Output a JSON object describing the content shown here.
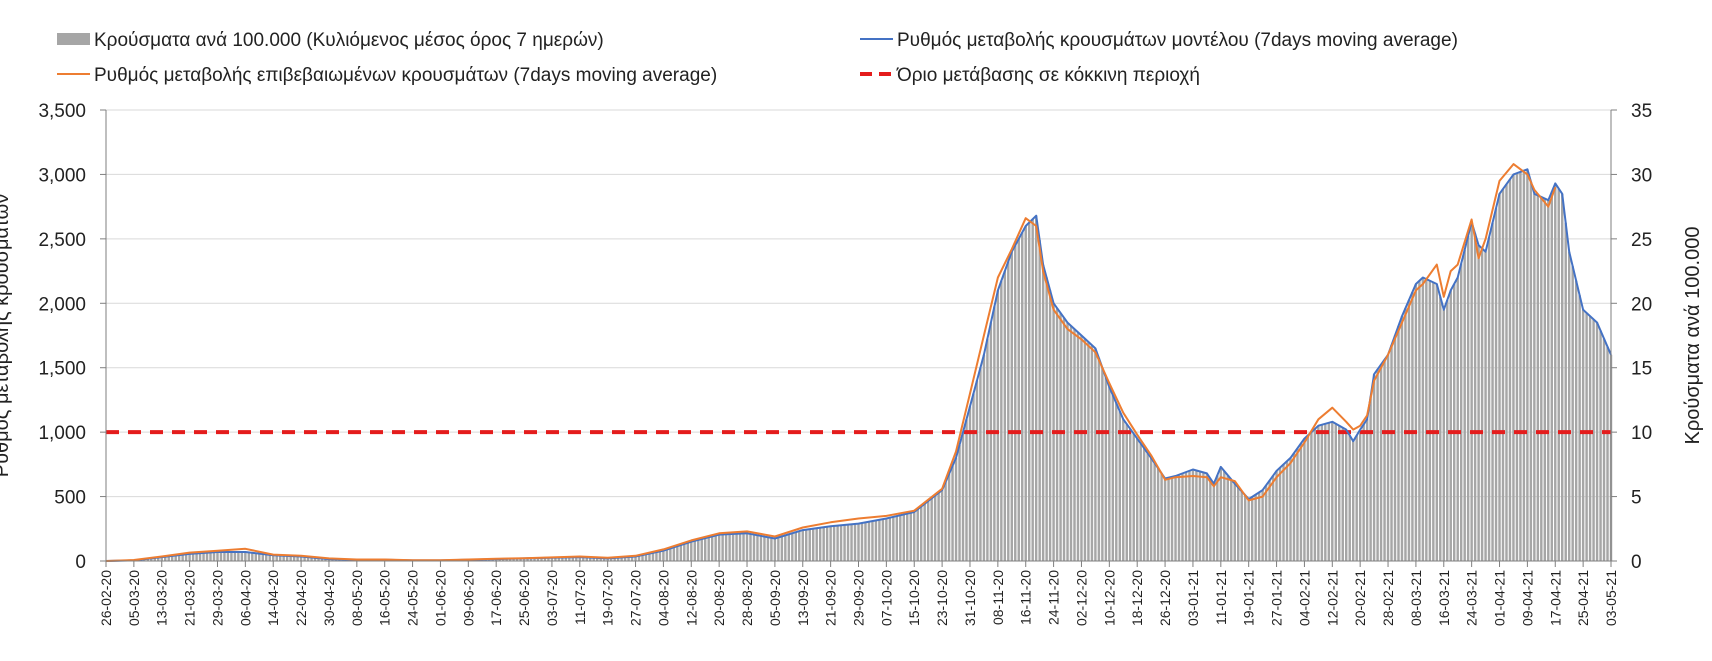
{
  "chart_data": {
    "type": "bar+line",
    "title": "",
    "ylabel_left": "Ρυθμός μεταβολής κρουσμάτων",
    "ylabel_right": "Κρούσματα ανά 100.000",
    "ylim_left": [
      0,
      3500
    ],
    "ylim_right": [
      0,
      35
    ],
    "yticks_left": [
      "0",
      "500",
      "1,000",
      "1,500",
      "2,000",
      "2,500",
      "3,000",
      "3,500"
    ],
    "yticks_right": [
      "0",
      "5",
      "10",
      "15",
      "20",
      "25",
      "30",
      "35"
    ],
    "grid": true,
    "legend_position": "top",
    "x_start": "26-02-20",
    "x_end": "03-05-21",
    "x_tick_labels": [
      "26-02-20",
      "05-03-20",
      "13-03-20",
      "21-03-20",
      "29-03-20",
      "06-04-20",
      "14-04-20",
      "22-04-20",
      "30-04-20",
      "08-05-20",
      "16-05-20",
      "24-05-20",
      "01-06-20",
      "09-06-20",
      "17-06-20",
      "25-06-20",
      "03-07-20",
      "11-07-20",
      "19-07-20",
      "27-07-20",
      "04-08-20",
      "12-08-20",
      "20-08-20",
      "28-08-20",
      "05-09-20",
      "13-09-20",
      "21-09-20",
      "29-09-20",
      "07-10-20",
      "15-10-20",
      "23-10-20",
      "31-10-20",
      "08-11-20",
      "16-11-20",
      "24-11-20",
      "02-12-20",
      "10-12-20",
      "18-12-20",
      "26-12-20",
      "03-01-21",
      "11-01-21",
      "19-01-21",
      "27-01-21",
      "04-02-21",
      "12-02-21",
      "20-02-21",
      "28-02-21",
      "08-03-21",
      "16-03-21",
      "24-03-21",
      "01-04-21",
      "09-04-21",
      "17-04-21",
      "25-04-21",
      "03-05-21"
    ],
    "threshold": {
      "name": "Όριο μετάβασης σε κόκκινη περιοχή",
      "value": 1000,
      "color": "#e41c1c"
    },
    "series": [
      {
        "name": "Κρούσματα ανά 100.000 (Κυλιόμενος μέσος όρος 7 ημερών)",
        "kind": "bar",
        "axis": "right",
        "color": "#a6a6a6",
        "points": [
          [
            "26-02-20",
            0
          ],
          [
            "05-03-20",
            0.05
          ],
          [
            "13-03-20",
            0.3
          ],
          [
            "21-03-20",
            0.6
          ],
          [
            "29-03-20",
            0.7
          ],
          [
            "06-04-20",
            0.75
          ],
          [
            "14-04-20",
            0.45
          ],
          [
            "22-04-20",
            0.35
          ],
          [
            "30-04-20",
            0.15
          ],
          [
            "08-05-20",
            0.1
          ],
          [
            "16-05-20",
            0.1
          ],
          [
            "24-05-20",
            0.05
          ],
          [
            "01-06-20",
            0.05
          ],
          [
            "09-06-20",
            0.1
          ],
          [
            "17-06-20",
            0.15
          ],
          [
            "25-06-20",
            0.2
          ],
          [
            "03-07-20",
            0.25
          ],
          [
            "11-07-20",
            0.3
          ],
          [
            "19-07-20",
            0.2
          ],
          [
            "27-07-20",
            0.35
          ],
          [
            "04-08-20",
            0.8
          ],
          [
            "12-08-20",
            1.5
          ],
          [
            "20-08-20",
            2.0
          ],
          [
            "28-08-20",
            2.1
          ],
          [
            "05-09-20",
            1.8
          ],
          [
            "13-09-20",
            2.4
          ],
          [
            "21-09-20",
            2.7
          ],
          [
            "29-09-20",
            2.9
          ],
          [
            "07-10-20",
            3.3
          ],
          [
            "15-10-20",
            3.8
          ],
          [
            "23-10-20",
            5.5
          ],
          [
            "27-10-20",
            8.0
          ],
          [
            "31-10-20",
            12.0
          ],
          [
            "04-11-20",
            16.0
          ],
          [
            "08-11-20",
            21.0
          ],
          [
            "12-11-20",
            24.0
          ],
          [
            "16-11-20",
            26.0
          ],
          [
            "19-11-20",
            26.8
          ],
          [
            "21-11-20",
            23.0
          ],
          [
            "24-11-20",
            20.0
          ],
          [
            "28-11-20",
            18.5
          ],
          [
            "02-12-20",
            17.5
          ],
          [
            "06-12-20",
            16.5
          ],
          [
            "10-12-20",
            13.5
          ],
          [
            "14-12-20",
            11.0
          ],
          [
            "18-12-20",
            9.5
          ],
          [
            "22-12-20",
            8.0
          ],
          [
            "26-12-20",
            6.4
          ],
          [
            "29-12-20",
            6.6
          ],
          [
            "03-01-21",
            7.1
          ],
          [
            "07-01-21",
            6.8
          ],
          [
            "09-01-21",
            6.0
          ],
          [
            "11-01-21",
            7.3
          ],
          [
            "15-01-21",
            6.0
          ],
          [
            "19-01-21",
            4.8
          ],
          [
            "23-01-21",
            5.5
          ],
          [
            "27-01-21",
            7.0
          ],
          [
            "31-01-21",
            8.0
          ],
          [
            "04-02-21",
            9.5
          ],
          [
            "08-02-21",
            10.5
          ],
          [
            "12-02-21",
            10.8
          ],
          [
            "16-02-21",
            10.2
          ],
          [
            "18-02-21",
            9.3
          ],
          [
            "20-02-21",
            10.2
          ],
          [
            "22-02-21",
            11.0
          ],
          [
            "24-02-21",
            14.5
          ],
          [
            "28-02-21",
            16.0
          ],
          [
            "04-03-21",
            19.0
          ],
          [
            "08-03-21",
            21.5
          ],
          [
            "10-03-21",
            22.0
          ],
          [
            "14-03-21",
            21.5
          ],
          [
            "16-03-21",
            19.5
          ],
          [
            "18-03-21",
            21.0
          ],
          [
            "20-03-21",
            22.0
          ],
          [
            "24-03-21",
            26.3
          ],
          [
            "26-03-21",
            24.5
          ],
          [
            "28-03-21",
            24.0
          ],
          [
            "01-04-21",
            28.5
          ],
          [
            "05-04-21",
            30.0
          ],
          [
            "09-04-21",
            30.4
          ],
          [
            "11-04-21",
            28.5
          ],
          [
            "15-04-21",
            28.0
          ],
          [
            "17-04-21",
            29.3
          ],
          [
            "19-04-21",
            28.5
          ],
          [
            "21-04-21",
            24.0
          ],
          [
            "25-04-21",
            19.5
          ],
          [
            "29-04-21",
            18.5
          ],
          [
            "03-05-21",
            16.0
          ]
        ]
      },
      {
        "name": "Ρυθμός μεταβολής κρουσμάτων μοντέλου (7days moving average)",
        "kind": "line",
        "axis": "left",
        "color": "#4472c4",
        "points": [
          [
            "26-02-20",
            0
          ],
          [
            "05-03-20",
            5
          ],
          [
            "13-03-20",
            30
          ],
          [
            "21-03-20",
            55
          ],
          [
            "29-03-20",
            70
          ],
          [
            "06-04-20",
            70
          ],
          [
            "14-04-20",
            45
          ],
          [
            "22-04-20",
            35
          ],
          [
            "30-04-20",
            15
          ],
          [
            "08-05-20",
            10
          ],
          [
            "16-05-20",
            10
          ],
          [
            "24-05-20",
            5
          ],
          [
            "01-06-20",
            5
          ],
          [
            "09-06-20",
            10
          ],
          [
            "17-06-20",
            15
          ],
          [
            "25-06-20",
            20
          ],
          [
            "03-07-20",
            25
          ],
          [
            "11-07-20",
            30
          ],
          [
            "19-07-20",
            20
          ],
          [
            "27-07-20",
            35
          ],
          [
            "04-08-20",
            80
          ],
          [
            "12-08-20",
            150
          ],
          [
            "20-08-20",
            205
          ],
          [
            "28-08-20",
            215
          ],
          [
            "05-09-20",
            175
          ],
          [
            "13-09-20",
            240
          ],
          [
            "21-09-20",
            270
          ],
          [
            "29-09-20",
            290
          ],
          [
            "07-10-20",
            330
          ],
          [
            "15-10-20",
            380
          ],
          [
            "23-10-20",
            550
          ],
          [
            "27-10-20",
            800
          ],
          [
            "31-10-20",
            1200
          ],
          [
            "04-11-20",
            1600
          ],
          [
            "08-11-20",
            2100
          ],
          [
            "12-11-20",
            2400
          ],
          [
            "16-11-20",
            2600
          ],
          [
            "19-11-20",
            2680
          ],
          [
            "21-11-20",
            2300
          ],
          [
            "24-11-20",
            2000
          ],
          [
            "28-11-20",
            1850
          ],
          [
            "02-12-20",
            1750
          ],
          [
            "06-12-20",
            1650
          ],
          [
            "10-12-20",
            1350
          ],
          [
            "14-12-20",
            1100
          ],
          [
            "18-12-20",
            950
          ],
          [
            "22-12-20",
            800
          ],
          [
            "26-12-20",
            640
          ],
          [
            "29-12-20",
            660
          ],
          [
            "03-01-21",
            710
          ],
          [
            "07-01-21",
            680
          ],
          [
            "09-01-21",
            600
          ],
          [
            "11-01-21",
            730
          ],
          [
            "15-01-21",
            600
          ],
          [
            "19-01-21",
            480
          ],
          [
            "23-01-21",
            550
          ],
          [
            "27-01-21",
            700
          ],
          [
            "31-01-21",
            800
          ],
          [
            "04-02-21",
            950
          ],
          [
            "08-02-21",
            1050
          ],
          [
            "12-02-21",
            1080
          ],
          [
            "16-02-21",
            1020
          ],
          [
            "18-02-21",
            930
          ],
          [
            "20-02-21",
            1020
          ],
          [
            "22-02-21",
            1100
          ],
          [
            "24-02-21",
            1450
          ],
          [
            "28-02-21",
            1600
          ],
          [
            "04-03-21",
            1900
          ],
          [
            "08-03-21",
            2150
          ],
          [
            "10-03-21",
            2200
          ],
          [
            "14-03-21",
            2150
          ],
          [
            "16-03-21",
            1950
          ],
          [
            "18-03-21",
            2100
          ],
          [
            "20-03-21",
            2200
          ],
          [
            "24-03-21",
            2630
          ],
          [
            "26-03-21",
            2450
          ],
          [
            "28-03-21",
            2400
          ],
          [
            "01-04-21",
            2850
          ],
          [
            "05-04-21",
            3000
          ],
          [
            "09-04-21",
            3040
          ],
          [
            "11-04-21",
            2850
          ],
          [
            "15-04-21",
            2800
          ],
          [
            "17-04-21",
            2930
          ],
          [
            "19-04-21",
            2850
          ],
          [
            "21-04-21",
            2400
          ],
          [
            "25-04-21",
            1950
          ],
          [
            "29-04-21",
            1850
          ],
          [
            "03-05-21",
            1600
          ]
        ]
      },
      {
        "name": "Ρυθμός μεταβολής επιβεβαιωμένων κρουσμάτων (7days moving average)",
        "kind": "line",
        "axis": "left",
        "color": "#ed7d31",
        "points": [
          [
            "26-02-20",
            0
          ],
          [
            "05-03-20",
            8
          ],
          [
            "13-03-20",
            35
          ],
          [
            "21-03-20",
            65
          ],
          [
            "29-03-20",
            80
          ],
          [
            "06-04-20",
            95
          ],
          [
            "14-04-20",
            50
          ],
          [
            "22-04-20",
            40
          ],
          [
            "30-04-20",
            20
          ],
          [
            "08-05-20",
            12
          ],
          [
            "16-05-20",
            12
          ],
          [
            "24-05-20",
            6
          ],
          [
            "01-06-20",
            6
          ],
          [
            "09-06-20",
            12
          ],
          [
            "17-06-20",
            18
          ],
          [
            "25-06-20",
            22
          ],
          [
            "03-07-20",
            28
          ],
          [
            "11-07-20",
            35
          ],
          [
            "19-07-20",
            25
          ],
          [
            "27-07-20",
            40
          ],
          [
            "04-08-20",
            90
          ],
          [
            "12-08-20",
            160
          ],
          [
            "20-08-20",
            215
          ],
          [
            "28-08-20",
            230
          ],
          [
            "05-09-20",
            190
          ],
          [
            "13-09-20",
            260
          ],
          [
            "21-09-20",
            300
          ],
          [
            "29-09-20",
            330
          ],
          [
            "07-10-20",
            350
          ],
          [
            "15-10-20",
            390
          ],
          [
            "23-10-20",
            560
          ],
          [
            "27-10-20",
            850
          ],
          [
            "31-10-20",
            1300
          ],
          [
            "04-11-20",
            1750
          ],
          [
            "08-11-20",
            2200
          ],
          [
            "12-11-20",
            2420
          ],
          [
            "16-11-20",
            2660
          ],
          [
            "19-11-20",
            2600
          ],
          [
            "21-11-20",
            2250
          ],
          [
            "24-11-20",
            1950
          ],
          [
            "28-11-20",
            1800
          ],
          [
            "02-12-20",
            1720
          ],
          [
            "06-12-20",
            1620
          ],
          [
            "10-12-20",
            1380
          ],
          [
            "14-12-20",
            1150
          ],
          [
            "18-12-20",
            980
          ],
          [
            "22-12-20",
            820
          ],
          [
            "26-12-20",
            630
          ],
          [
            "29-12-20",
            650
          ],
          [
            "03-01-21",
            660
          ],
          [
            "07-01-21",
            650
          ],
          [
            "09-01-21",
            580
          ],
          [
            "11-01-21",
            650
          ],
          [
            "15-01-21",
            620
          ],
          [
            "19-01-21",
            470
          ],
          [
            "23-01-21",
            500
          ],
          [
            "27-01-21",
            650
          ],
          [
            "31-01-21",
            760
          ],
          [
            "04-02-21",
            920
          ],
          [
            "08-02-21",
            1100
          ],
          [
            "12-02-21",
            1190
          ],
          [
            "16-02-21",
            1080
          ],
          [
            "18-02-21",
            1020
          ],
          [
            "20-02-21",
            1050
          ],
          [
            "22-02-21",
            1130
          ],
          [
            "24-02-21",
            1400
          ],
          [
            "28-02-21",
            1600
          ],
          [
            "04-03-21",
            1850
          ],
          [
            "08-03-21",
            2100
          ],
          [
            "10-03-21",
            2150
          ],
          [
            "14-03-21",
            2300
          ],
          [
            "16-03-21",
            2050
          ],
          [
            "18-03-21",
            2250
          ],
          [
            "20-03-21",
            2300
          ],
          [
            "24-03-21",
            2650
          ],
          [
            "26-03-21",
            2350
          ],
          [
            "28-03-21",
            2500
          ],
          [
            "01-04-21",
            2950
          ],
          [
            "05-04-21",
            3080
          ],
          [
            "09-04-21",
            3000
          ],
          [
            "11-04-21",
            2880
          ],
          [
            "15-04-21",
            2750
          ],
          [
            "17-04-21",
            2900
          ]
        ]
      }
    ]
  }
}
